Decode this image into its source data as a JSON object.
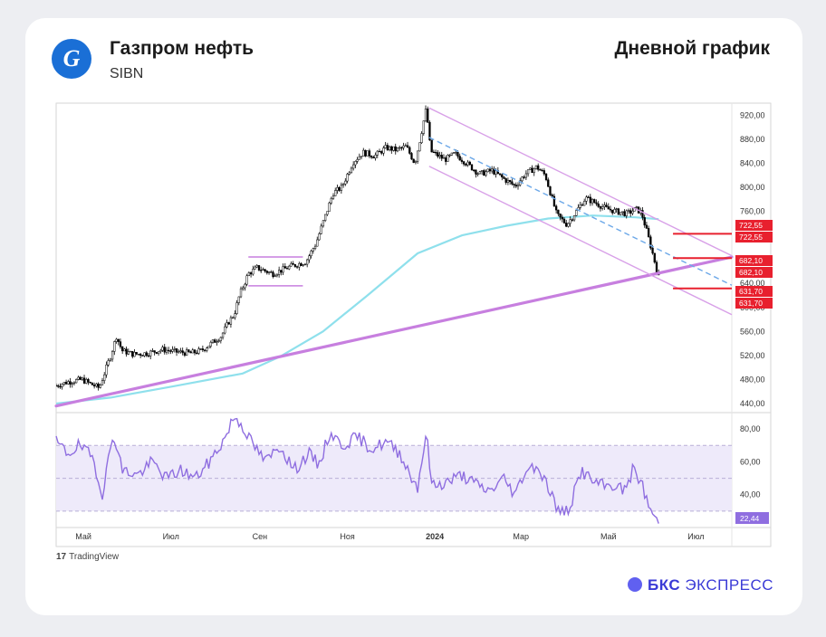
{
  "header": {
    "company": "Газпром нефть",
    "ticker": "SIBN",
    "logo_letter": "G",
    "chart_title": "Дневной график"
  },
  "footer": {
    "tradingview": "TradingView",
    "tradingview_mark": "17",
    "brand_bold": "БКС",
    "brand_rest": "ЭКСПРЕСС"
  },
  "colors": {
    "candle": "#000000",
    "ma": "#8fe0ec",
    "trendline": "#c77fdf",
    "channel": "#d8a0e8",
    "midline": "#6ca8e8",
    "level": "#e8202e",
    "rsi": "#8f6ee0",
    "rsi_band": "#eeeafa",
    "brand": "#3a3ad6"
  },
  "chart_data": [
    {
      "type": "candlestick",
      "title": "",
      "x_ticks": [
        "Май",
        "Июл",
        "Сен",
        "Ноя",
        "2024",
        "Мар",
        "Май",
        "Июл"
      ],
      "x_range": [
        "2023-04-12",
        "2024-07-26"
      ],
      "ylim": [
        425,
        940
      ],
      "y_ticks": [
        "440,00",
        "480,00",
        "520,00",
        "560,00",
        "600,00",
        "640,00",
        "680,00",
        "720,00",
        "760,00",
        "800,00",
        "840,00",
        "880,00",
        "920,00"
      ],
      "price_path": [
        [
          "2023-04-12",
          470
        ],
        [
          "2023-04-20",
          476
        ],
        [
          "2023-04-30",
          480
        ],
        [
          "2023-05-05",
          474
        ],
        [
          "2023-05-12",
          466
        ],
        [
          "2023-05-20",
          520
        ],
        [
          "2023-05-24",
          552
        ],
        [
          "2023-05-28",
          528
        ],
        [
          "2023-06-05",
          522
        ],
        [
          "2023-06-15",
          524
        ],
        [
          "2023-06-25",
          530
        ],
        [
          "2023-07-05",
          526
        ],
        [
          "2023-07-15",
          524
        ],
        [
          "2023-07-22",
          528
        ],
        [
          "2023-07-29",
          540
        ],
        [
          "2023-08-05",
          552
        ],
        [
          "2023-08-10",
          575
        ],
        [
          "2023-08-14",
          588
        ],
        [
          "2023-08-18",
          622
        ],
        [
          "2023-08-24",
          656
        ],
        [
          "2023-08-30",
          666
        ],
        [
          "2023-09-10",
          656
        ],
        [
          "2023-09-22",
          668
        ],
        [
          "2023-10-03",
          676
        ],
        [
          "2023-10-10",
          706
        ],
        [
          "2023-10-16",
          748
        ],
        [
          "2023-10-22",
          790
        ],
        [
          "2023-10-28",
          800
        ],
        [
          "2023-11-05",
          842
        ],
        [
          "2023-11-12",
          858
        ],
        [
          "2023-11-20",
          852
        ],
        [
          "2023-11-28",
          866
        ],
        [
          "2023-12-05",
          862
        ],
        [
          "2023-12-12",
          868
        ],
        [
          "2023-12-18",
          840
        ],
        [
          "2023-12-22",
          884
        ],
        [
          "2023-12-26",
          932
        ],
        [
          "2023-12-29",
          860
        ],
        [
          "2024-01-08",
          846
        ],
        [
          "2024-01-15",
          856
        ],
        [
          "2024-01-25",
          836
        ],
        [
          "2024-02-01",
          822
        ],
        [
          "2024-02-10",
          828
        ],
        [
          "2024-02-18",
          814
        ],
        [
          "2024-02-26",
          802
        ],
        [
          "2024-03-04",
          822
        ],
        [
          "2024-03-12",
          834
        ],
        [
          "2024-03-18",
          820
        ],
        [
          "2024-03-26",
          754
        ],
        [
          "2024-04-02",
          738
        ],
        [
          "2024-04-08",
          758
        ],
        [
          "2024-04-15",
          782
        ],
        [
          "2024-04-22",
          774
        ],
        [
          "2024-04-29",
          765
        ],
        [
          "2024-05-06",
          760
        ],
        [
          "2024-05-14",
          756
        ],
        [
          "2024-05-20",
          764
        ],
        [
          "2024-05-24",
          758
        ],
        [
          "2024-05-28",
          724
        ],
        [
          "2024-06-01",
          688
        ],
        [
          "2024-06-05",
          650
        ]
      ],
      "moving_average": [
        [
          "2023-04-12",
          440
        ],
        [
          "2023-05-20",
          450
        ],
        [
          "2023-07-01",
          468
        ],
        [
          "2023-08-20",
          490
        ],
        [
          "2023-09-15",
          518
        ],
        [
          "2023-10-15",
          560
        ],
        [
          "2023-11-15",
          620
        ],
        [
          "2023-12-20",
          690
        ],
        [
          "2024-01-20",
          720
        ],
        [
          "2024-02-20",
          736
        ],
        [
          "2024-03-20",
          748
        ],
        [
          "2024-04-20",
          753
        ],
        [
          "2024-05-20",
          750
        ],
        [
          "2024-06-05",
          747
        ]
      ],
      "trendline": [
        [
          "2023-04-12",
          436
        ],
        [
          "2024-07-26",
          684
        ]
      ],
      "channel_upper": [
        [
          "2023-12-28",
          932
        ],
        [
          "2024-07-26",
          686
        ]
      ],
      "channel_lower": [
        [
          "2023-12-28",
          835
        ],
        [
          "2024-07-26",
          588
        ]
      ],
      "channel_mid": [
        [
          "2023-12-28",
          883
        ],
        [
          "2024-07-26",
          637
        ]
      ],
      "range_box": {
        "start": "2023-08-24",
        "end": "2023-10-01",
        "top": 684,
        "bottom": 636
      },
      "levels": [
        {
          "value": 722.55,
          "label": "722,55",
          "start": "2024-06-15"
        },
        {
          "value": 682.1,
          "label": "682,10",
          "start": "2024-06-15"
        },
        {
          "value": 631.7,
          "label": "631,70",
          "start": "2024-06-15"
        }
      ],
      "level_callouts": [
        "722,55",
        "722,55",
        "682,10",
        "682,10",
        "631,70",
        "631,70"
      ]
    },
    {
      "type": "line",
      "title": "",
      "ylim": [
        20,
        90
      ],
      "y_ticks": [
        "40,00",
        "60,00",
        "80,00"
      ],
      "band": [
        30,
        70
      ],
      "midline": 50,
      "last_value": "22,44",
      "x_range": [
        "2023-04-12",
        "2024-07-26"
      ],
      "values": [
        [
          "2023-04-12",
          72
        ],
        [
          "2023-04-20",
          65
        ],
        [
          "2023-04-28",
          70
        ],
        [
          "2023-05-08",
          62
        ],
        [
          "2023-05-14",
          40
        ],
        [
          "2023-05-22",
          78
        ],
        [
          "2023-05-28",
          55
        ],
        [
          "2023-06-08",
          52
        ],
        [
          "2023-06-18",
          60
        ],
        [
          "2023-06-28",
          50
        ],
        [
          "2023-07-08",
          55
        ],
        [
          "2023-07-18",
          50
        ],
        [
          "2023-07-28",
          60
        ],
        [
          "2023-08-08",
          75
        ],
        [
          "2023-08-14",
          88
        ],
        [
          "2023-08-20",
          82
        ],
        [
          "2023-08-26",
          72
        ],
        [
          "2023-09-05",
          60
        ],
        [
          "2023-09-15",
          70
        ],
        [
          "2023-09-25",
          55
        ],
        [
          "2023-10-05",
          65
        ],
        [
          "2023-10-12",
          58
        ],
        [
          "2023-10-20",
          78
        ],
        [
          "2023-10-28",
          70
        ],
        [
          "2023-11-08",
          75
        ],
        [
          "2023-11-18",
          68
        ],
        [
          "2023-11-28",
          72
        ],
        [
          "2023-12-08",
          65
        ],
        [
          "2023-12-16",
          50
        ],
        [
          "2023-12-20",
          45
        ],
        [
          "2023-12-26",
          78
        ],
        [
          "2023-12-30",
          45
        ],
        [
          "2024-01-10",
          48
        ],
        [
          "2024-01-20",
          52
        ],
        [
          "2024-01-30",
          46
        ],
        [
          "2024-02-08",
          42
        ],
        [
          "2024-02-18",
          50
        ],
        [
          "2024-02-26",
          40
        ],
        [
          "2024-03-04",
          55
        ],
        [
          "2024-03-12",
          58
        ],
        [
          "2024-03-20",
          45
        ],
        [
          "2024-03-28",
          28
        ],
        [
          "2024-04-04",
          32
        ],
        [
          "2024-04-12",
          55
        ],
        [
          "2024-04-20",
          48
        ],
        [
          "2024-04-28",
          45
        ],
        [
          "2024-05-06",
          46
        ],
        [
          "2024-05-12",
          42
        ],
        [
          "2024-05-18",
          55
        ],
        [
          "2024-05-24",
          48
        ],
        [
          "2024-05-28",
          35
        ],
        [
          "2024-06-05",
          22
        ]
      ],
      "x_ticks": [
        "Май",
        "Июл",
        "Сен",
        "Ноя",
        "2024",
        "Мар",
        "Май",
        "Июл"
      ]
    }
  ]
}
